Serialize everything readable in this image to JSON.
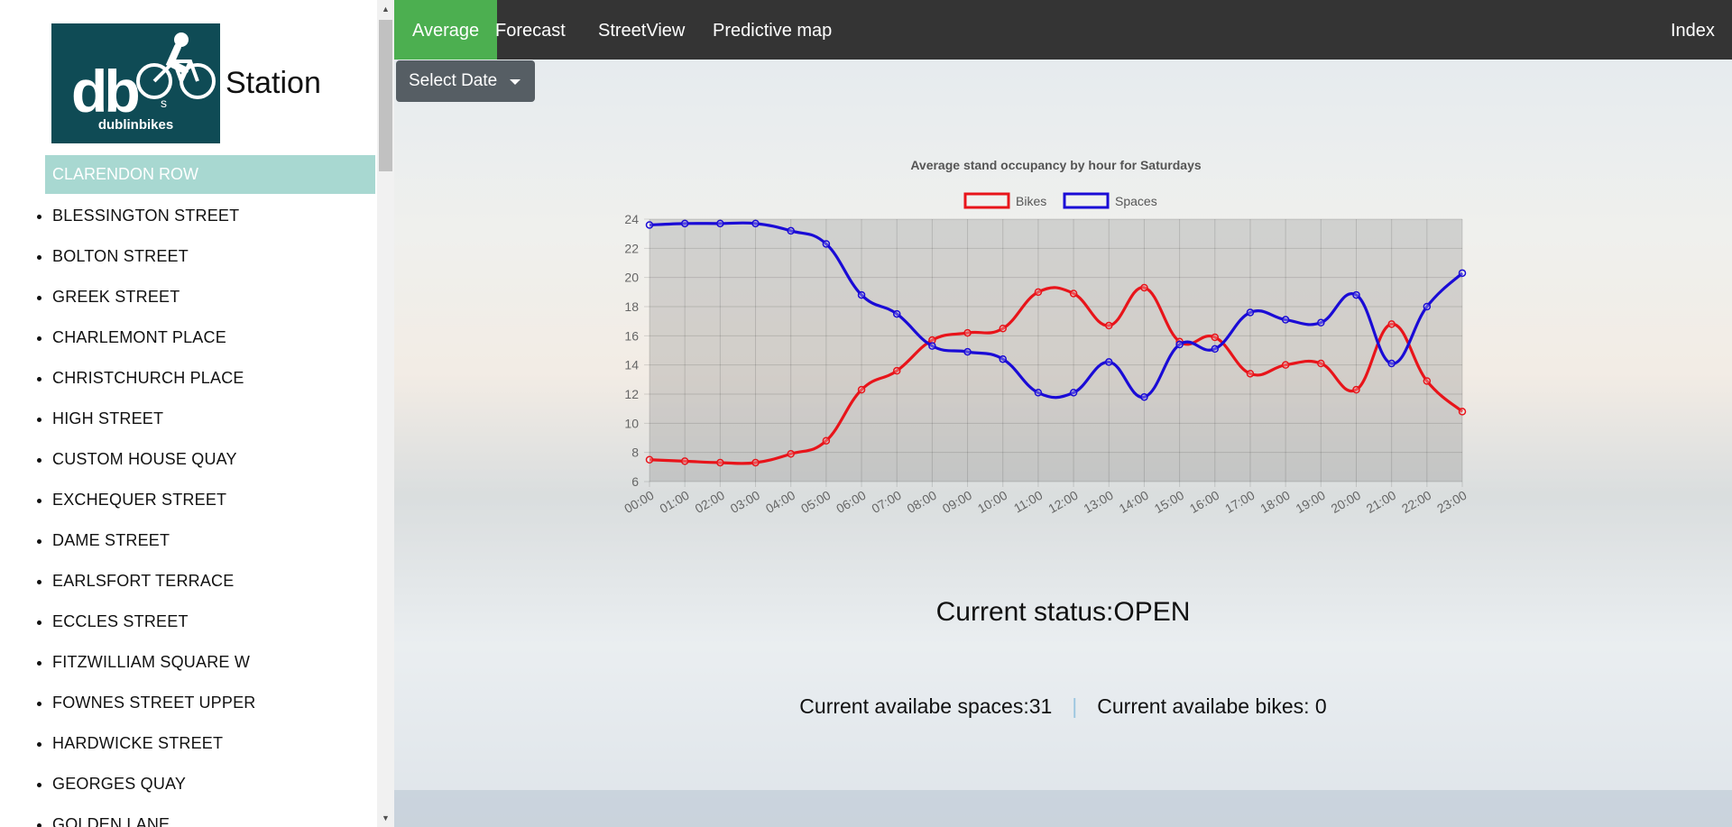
{
  "sidebar": {
    "logo_text": "db",
    "logo_sub": "s",
    "logo_brand": "dublinbikes",
    "title": "Station",
    "selected_station": "CLARENDON ROW",
    "stations": [
      "BLESSINGTON STREET",
      "BOLTON STREET",
      "GREEK STREET",
      "CHARLEMONT PLACE",
      "CHRISTCHURCH PLACE",
      "HIGH STREET",
      "CUSTOM HOUSE QUAY",
      "EXCHEQUER STREET",
      "DAME STREET",
      "EARLSFORT TERRACE",
      "ECCLES STREET",
      "FITZWILLIAM SQUARE W",
      "FOWNES STREET UPPER",
      "HARDWICKE STREET",
      "GEORGES QUAY",
      "GOLDEN LANE"
    ]
  },
  "nav": {
    "tabs": [
      "Average",
      "Forecast",
      "StreetView",
      "Predictive map"
    ],
    "active_tab": "Average",
    "right_link": "Index",
    "active_color": "#4caf50",
    "bar_color": "#343434"
  },
  "select_date": {
    "label": "Select Date"
  },
  "chart_data": {
    "type": "line",
    "title": "Average stand occupancy by hour for Saturdays",
    "legend_position": "top",
    "grid": true,
    "categories": [
      "00:00",
      "01:00",
      "02:00",
      "03:00",
      "04:00",
      "05:00",
      "06:00",
      "07:00",
      "08:00",
      "09:00",
      "10:00",
      "11:00",
      "12:00",
      "13:00",
      "14:00",
      "15:00",
      "16:00",
      "17:00",
      "18:00",
      "19:00",
      "20:00",
      "21:00",
      "22:00",
      "23:00"
    ],
    "ylim": [
      6,
      24
    ],
    "yticks": [
      6,
      8,
      10,
      12,
      14,
      16,
      18,
      20,
      22,
      24
    ],
    "series": [
      {
        "name": "Bikes",
        "color": "#e8141a",
        "values": [
          7.5,
          7.4,
          7.3,
          7.3,
          7.9,
          8.8,
          12.3,
          13.6,
          15.7,
          16.2,
          16.5,
          19.0,
          18.9,
          16.7,
          19.3,
          15.6,
          15.9,
          13.4,
          14.0,
          14.1,
          12.3,
          16.8,
          12.9,
          10.8
        ]
      },
      {
        "name": "Spaces",
        "color": "#1a0bd6",
        "values": [
          23.6,
          23.7,
          23.7,
          23.7,
          23.2,
          22.3,
          18.8,
          17.5,
          15.3,
          14.9,
          14.4,
          12.1,
          12.1,
          14.2,
          11.8,
          15.4,
          15.1,
          17.6,
          17.1,
          16.9,
          18.8,
          14.1,
          18.0,
          20.3
        ]
      }
    ]
  },
  "status": {
    "text": "Current status:OPEN"
  },
  "availability": {
    "spaces": "Current availabe spaces:31",
    "divider": "|",
    "bikes": "Current availabe bikes: 0"
  }
}
